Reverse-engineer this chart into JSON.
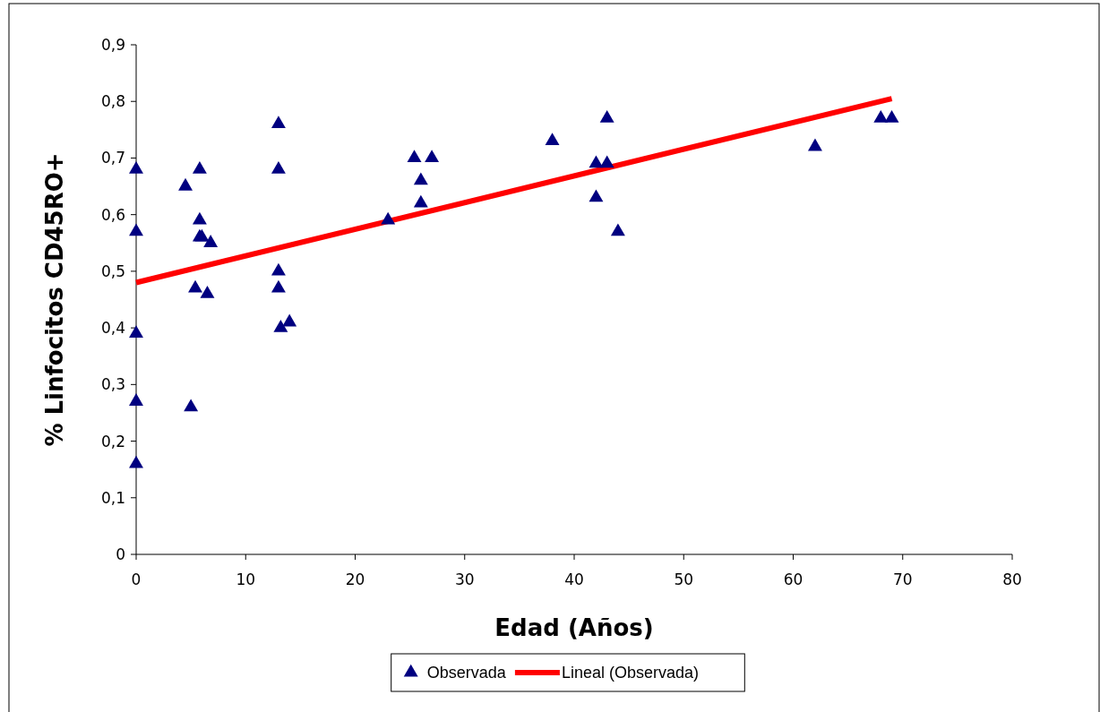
{
  "chart_data": {
    "type": "scatter",
    "xlabel": "Edad (Años)",
    "ylabel": "% Linfocitos CD45RO+",
    "xlim": [
      0,
      80
    ],
    "xticks": [
      0,
      10,
      20,
      30,
      40,
      50,
      60,
      70,
      80
    ],
    "ylim": [
      0,
      0.9
    ],
    "yticks": [
      {
        "value": 0,
        "label": "0"
      },
      {
        "value": 0.1,
        "label": "0,1"
      },
      {
        "value": 0.2,
        "label": "0,2"
      },
      {
        "value": 0.3,
        "label": "0,3"
      },
      {
        "value": 0.4,
        "label": "0,4"
      },
      {
        "value": 0.5,
        "label": "0,5"
      },
      {
        "value": 0.6,
        "label": "0,6"
      },
      {
        "value": 0.7,
        "label": "0,7"
      },
      {
        "value": 0.8,
        "label": "0,8"
      },
      {
        "value": 0.9,
        "label": "0,9"
      }
    ],
    "grid": false,
    "legend": "bottom",
    "series": [
      {
        "name": "Observada",
        "marker": "triangle",
        "color": "#000080",
        "x": [
          0,
          0,
          0,
          0,
          0,
          4.5,
          5,
          5.4,
          5.8,
          5.8,
          5.8,
          6,
          6.5,
          6.8,
          13,
          13,
          13,
          13,
          13.2,
          14,
          23,
          25.4,
          26,
          26,
          27,
          38,
          42,
          42,
          43,
          43,
          44,
          62,
          68,
          69
        ],
        "values": [
          0.68,
          0.57,
          0.39,
          0.27,
          0.16,
          0.65,
          0.26,
          0.47,
          0.68,
          0.59,
          0.56,
          0.56,
          0.46,
          0.55,
          0.76,
          0.68,
          0.5,
          0.47,
          0.4,
          0.41,
          0.59,
          0.7,
          0.66,
          0.62,
          0.7,
          0.73,
          0.69,
          0.63,
          0.77,
          0.69,
          0.57,
          0.72,
          0.77,
          0.77
        ]
      },
      {
        "name": "Lineal (Observada)",
        "type": "line",
        "color": "#ff0000",
        "line_style": "solid",
        "x": [
          0,
          69
        ],
        "values": [
          0.48,
          0.805
        ]
      }
    ]
  }
}
